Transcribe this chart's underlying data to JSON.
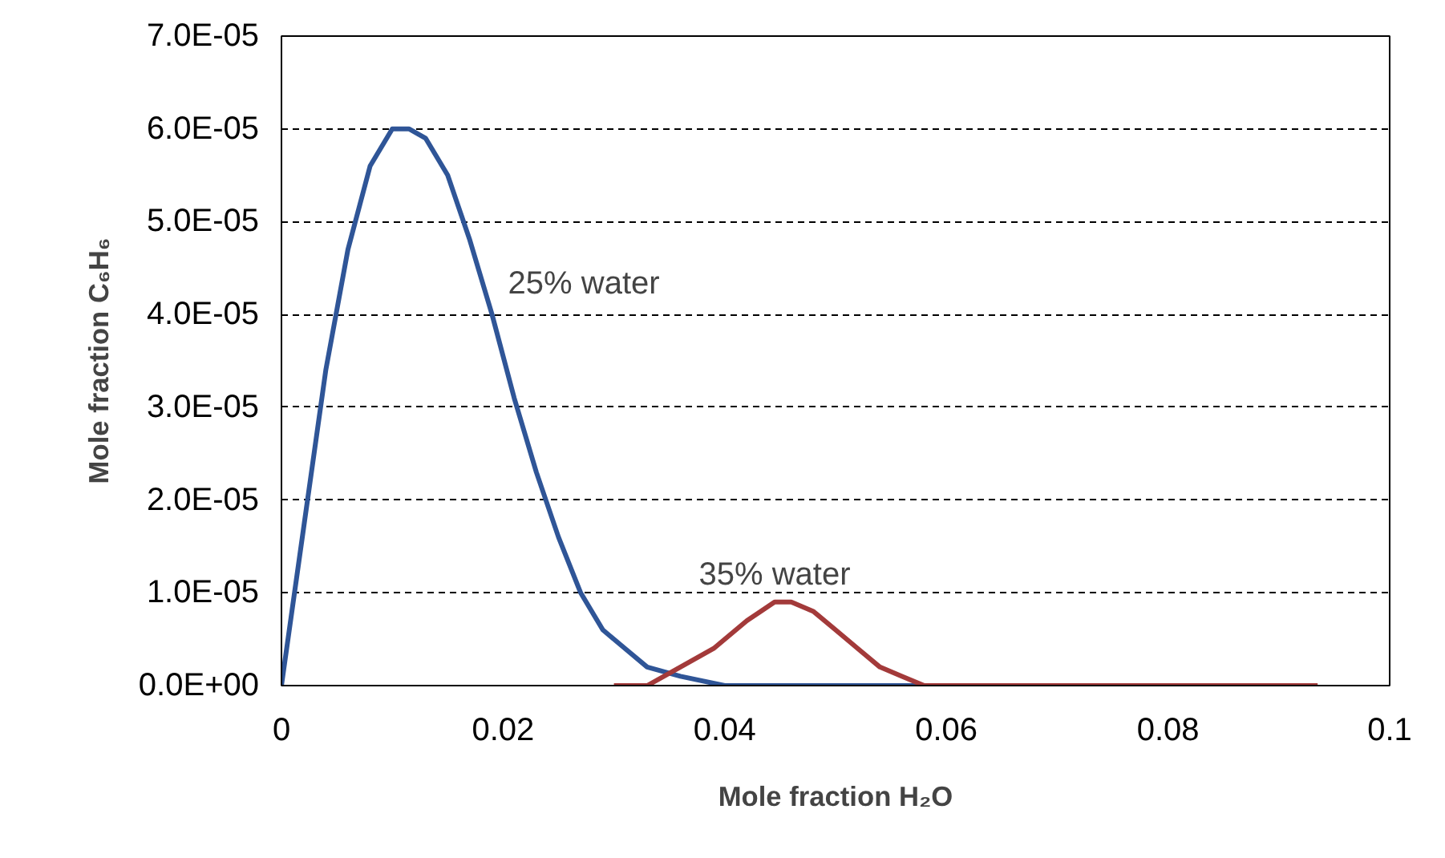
{
  "chart_data": {
    "type": "line",
    "xlabel": "Mole fraction H₂O",
    "ylabel": "Mole fraction C₆H₆",
    "xlim": [
      0,
      0.1
    ],
    "xticks": [
      0,
      0.02,
      0.04,
      0.06,
      0.08,
      0.1
    ],
    "ylim": [
      0,
      7e-05
    ],
    "yticks": [
      {
        "value": 0,
        "label": "0.0E+00"
      },
      {
        "value": 1e-05,
        "label": "1.0E-05"
      },
      {
        "value": 2e-05,
        "label": "2.0E-05"
      },
      {
        "value": 3e-05,
        "label": "3.0E-05"
      },
      {
        "value": 4e-05,
        "label": "4.0E-05"
      },
      {
        "value": 5e-05,
        "label": "5.0E-05"
      },
      {
        "value": 6e-05,
        "label": "6.0E-05"
      },
      {
        "value": 7e-05,
        "label": "7.0E-05"
      }
    ],
    "grid": "y",
    "legend": false,
    "marker": "none",
    "line_style": "solid",
    "series": [
      {
        "name": "25% water",
        "color": "#2f5597",
        "x": [
          0,
          0.002,
          0.004,
          0.006,
          0.008,
          0.01,
          0.0115,
          0.013,
          0.015,
          0.017,
          0.019,
          0.021,
          0.023,
          0.025,
          0.027,
          0.029,
          0.031,
          0.033,
          0.036,
          0.04,
          0.05,
          0.083
        ],
        "values": [
          0,
          1.7e-05,
          3.4e-05,
          4.7e-05,
          5.6e-05,
          6e-05,
          6e-05,
          5.9e-05,
          5.5e-05,
          4.8e-05,
          4e-05,
          3.1e-05,
          2.3e-05,
          1.6e-05,
          1e-05,
          6e-06,
          4e-06,
          2e-06,
          1e-06,
          0,
          0,
          0
        ]
      },
      {
        "name": "35% water",
        "color": "#a33a3a",
        "x": [
          0.03,
          0.033,
          0.036,
          0.039,
          0.042,
          0.0445,
          0.046,
          0.048,
          0.05,
          0.052,
          0.054,
          0.056,
          0.058,
          0.062,
          0.066,
          0.0935
        ],
        "values": [
          0,
          0,
          2e-06,
          4e-06,
          7e-06,
          9e-06,
          9e-06,
          8e-06,
          6e-06,
          4e-06,
          2e-06,
          1e-06,
          0,
          0,
          0,
          0
        ]
      }
    ]
  }
}
